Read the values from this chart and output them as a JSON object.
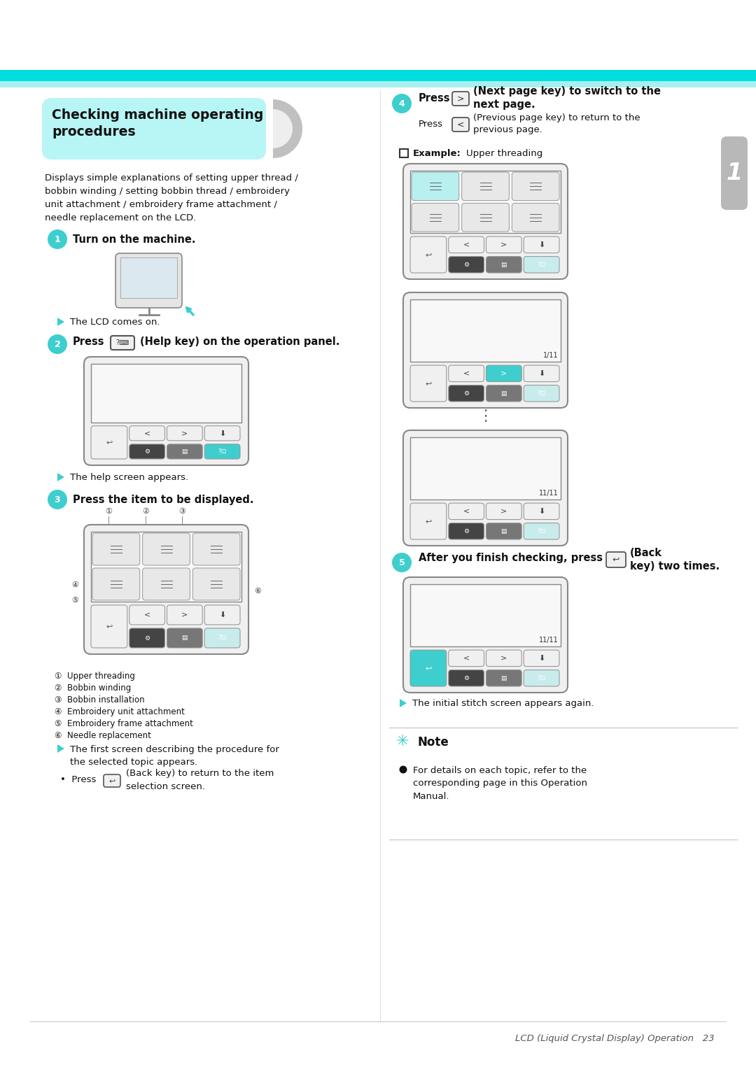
{
  "bg_color": "#ffffff",
  "top_bar1_color": "#00dede",
  "top_bar2_color": "#a8f0f0",
  "header_bg": "#b8f5f5",
  "step_color": "#3ecece",
  "arrow_color": "#3ecece",
  "body_color": "#111111",
  "tab_color": "#b0b0b0",
  "note_line_color": "#cccccc",
  "footer_text": "LCD (Liquid Crystal Display) Operation   23",
  "desc_text": "Displays simple explanations of setting upper thread /\nbobbin winding / setting bobbin thread / embroidery\nunit attachment / embroidery frame attachment /\nneedle replacement on the LCD.",
  "step1_text": "Turn on the machine.",
  "step1_result": "The LCD comes on.",
  "step2_label": "Press",
  "step2_text": "(Help key) on the operation panel.",
  "step2_result": "The help screen appears.",
  "step3_text": "Press the item to be displayed.",
  "legend": [
    "Upper threading",
    "Bobbin winding",
    "Bobbin installation",
    "Embroidery unit attachment",
    "Embroidery frame attachment",
    "Needle replacement"
  ],
  "step3_result": "The first screen describing the procedure for\nthe selected topic appears.",
  "back_key_text": "(Back key) to return to the item\nselection screen.",
  "step4_bold": "Press  >  (Next page key) to switch to the\nnext page.",
  "step4_normal": "Press  <  (Previous page key) to return to the\nprevious page.",
  "example_label": "Example:",
  "example_text": "Upper threading",
  "step5_text": "After you finish checking, press",
  "step5_text2": "(Back\nkey) two times.",
  "step5_result": "The initial stitch screen appears again.",
  "note_text": "For details on each topic, refer to the\ncorresponding page in this Operation\nManual."
}
